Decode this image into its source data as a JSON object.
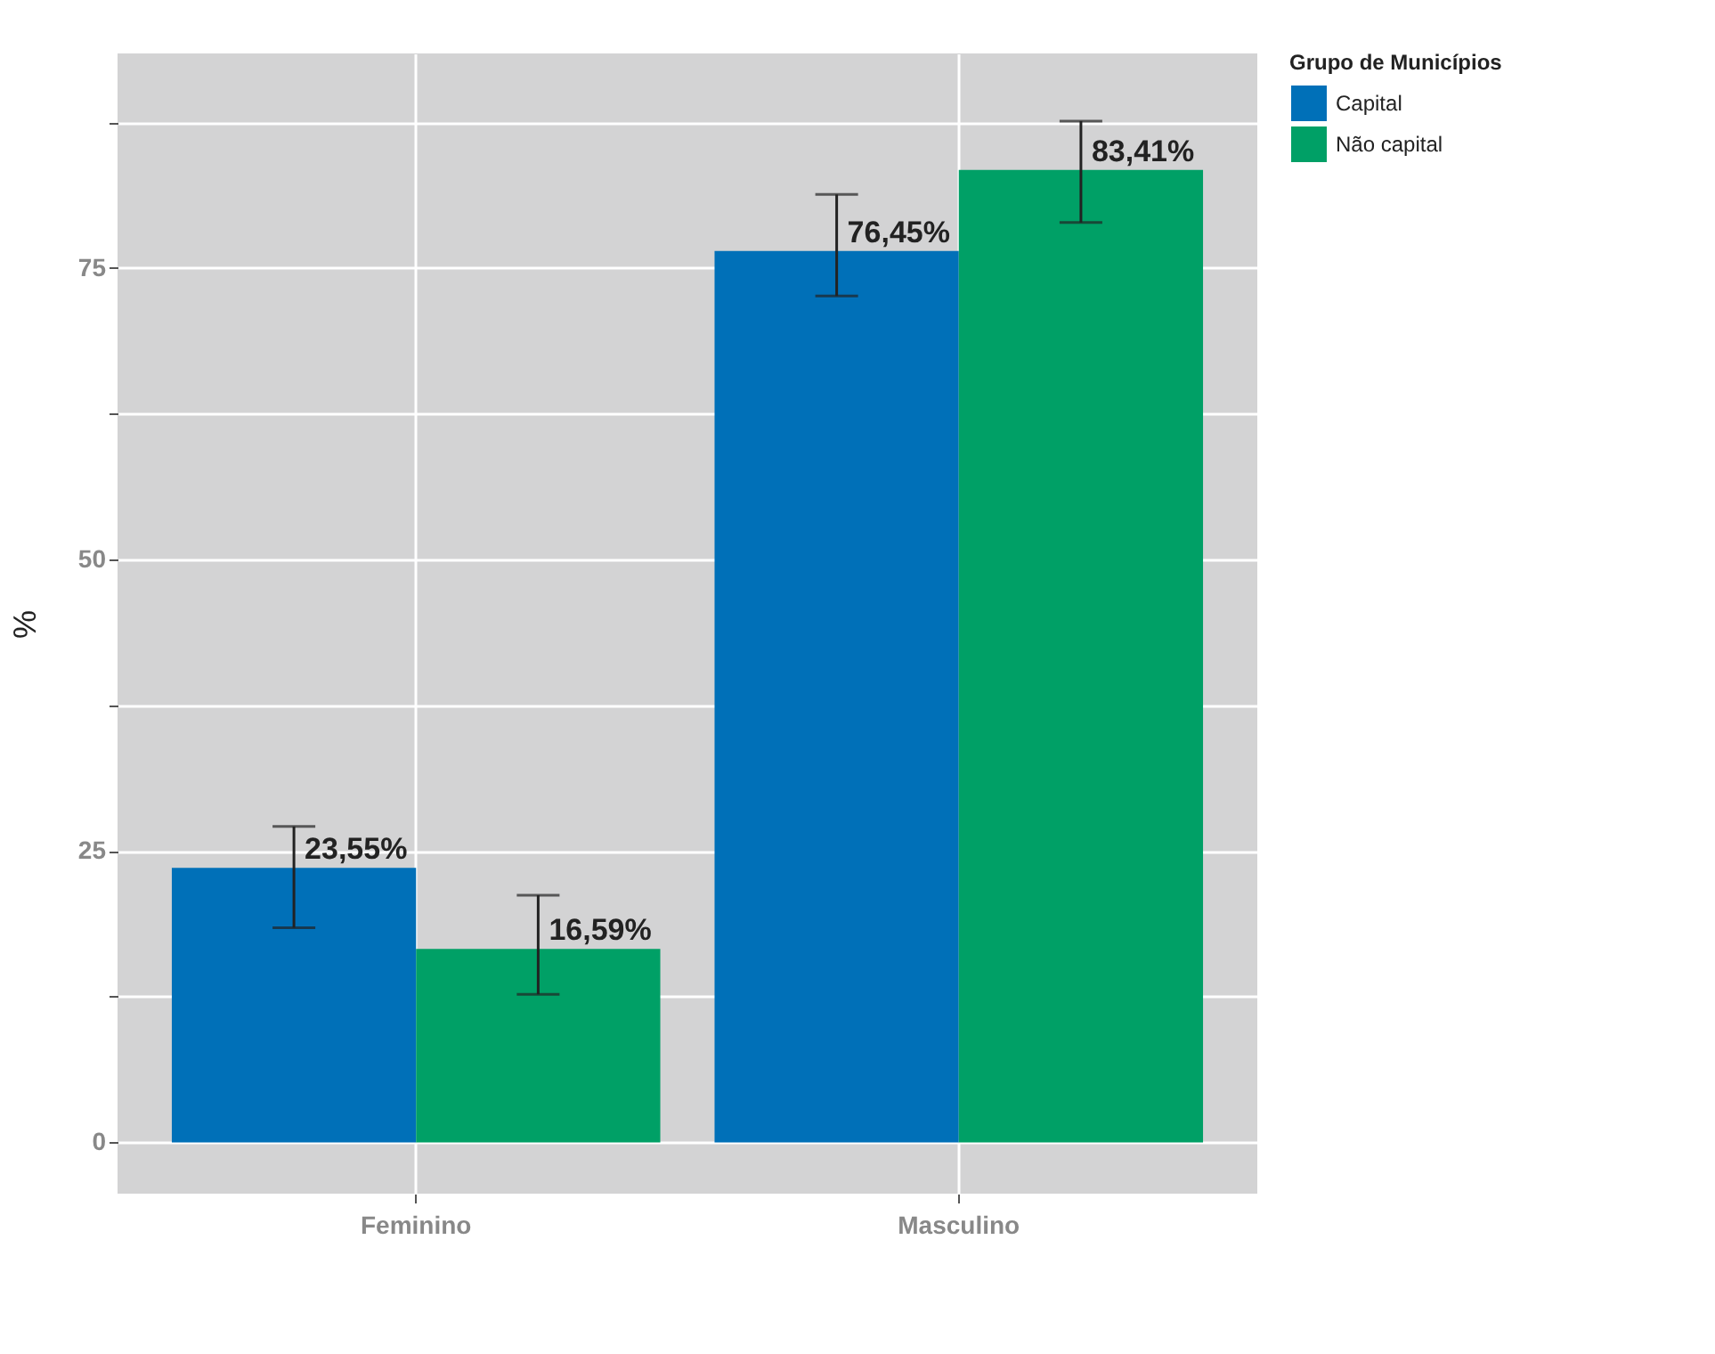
{
  "chart_data": {
    "type": "bar",
    "ylabel": "%",
    "legend_title": "Grupo de Municípios",
    "categories": [
      "Feminino",
      "Masculino"
    ],
    "series": [
      {
        "name": "Capital",
        "color": "#0070b8",
        "values": [
          23.55,
          76.45
        ],
        "errors": [
          [
            18.4,
            27.1
          ],
          [
            72.6,
            81.3
          ]
        ],
        "value_labels": [
          "23,55%",
          "76,45%"
        ]
      },
      {
        "name": "Não capital",
        "color": "#00a066",
        "values": [
          16.59,
          83.41
        ],
        "errors": [
          [
            12.7,
            21.2
          ],
          [
            78.9,
            87.6
          ]
        ],
        "value_labels": [
          "16,59%",
          "83,41%"
        ]
      }
    ],
    "ylim": [
      -4.4,
      93.4
    ],
    "yticks": [
      0,
      {
        "value": 12.5,
        "label": null
      },
      25,
      {
        "value": 37.5,
        "label": null
      },
      50,
      {
        "value": 62.5,
        "label": null
      },
      75,
      {
        "value": 87.5,
        "label": null
      }
    ],
    "grid": true,
    "legend": "right"
  }
}
